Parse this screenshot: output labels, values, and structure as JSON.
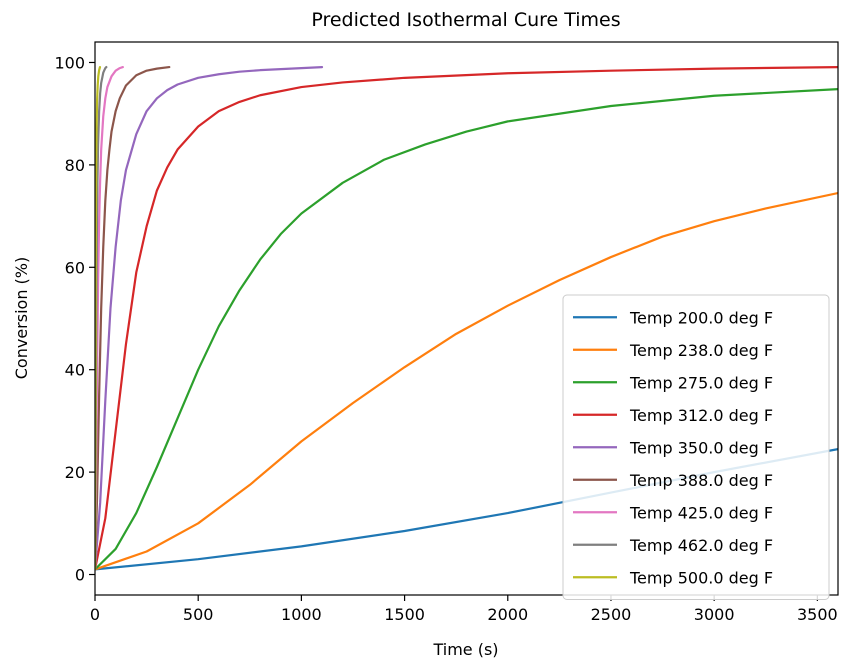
{
  "chart_data": {
    "type": "line",
    "title": "Predicted Isothermal Cure Times",
    "xlabel": "Time (s)",
    "ylabel": "Conversion (%)",
    "xlim": [
      0,
      3600
    ],
    "ylim": [
      -4,
      104
    ],
    "xticks": [
      0,
      500,
      1000,
      1500,
      2000,
      2500,
      3000,
      3500
    ],
    "yticks": [
      0,
      20,
      40,
      60,
      80,
      100
    ],
    "grid": false,
    "legend_position": "lower-right",
    "series": [
      {
        "name": "Temp 200.0 deg F",
        "color": "#1f77b4",
        "x": [
          0,
          500,
          1000,
          1500,
          2000,
          2500,
          3000,
          3600
        ],
        "y": [
          1,
          3,
          5.5,
          8.5,
          12,
          16,
          20,
          24.5
        ]
      },
      {
        "name": "Temp 238.0 deg F",
        "color": "#ff7f0e",
        "x": [
          0,
          250,
          500,
          750,
          1000,
          1250,
          1500,
          1750,
          2000,
          2250,
          2500,
          2750,
          3000,
          3250,
          3600
        ],
        "y": [
          1,
          4.5,
          10,
          17.5,
          26,
          33.5,
          40.5,
          47,
          52.5,
          57.5,
          62,
          66,
          69,
          71.5,
          74.5
        ]
      },
      {
        "name": "Temp 275.0 deg F",
        "color": "#2ca02c",
        "x": [
          0,
          100,
          200,
          300,
          400,
          500,
          600,
          700,
          800,
          900,
          1000,
          1200,
          1400,
          1600,
          1800,
          2000,
          2500,
          3000,
          3600
        ],
        "y": [
          1,
          5,
          12,
          21,
          30.5,
          40,
          48.5,
          55.5,
          61.5,
          66.5,
          70.5,
          76.5,
          81,
          84,
          86.5,
          88.5,
          91.5,
          93.5,
          94.8
        ]
      },
      {
        "name": "Temp 312.0 deg F",
        "color": "#d62728",
        "x": [
          0,
          50,
          100,
          150,
          200,
          250,
          300,
          350,
          400,
          500,
          600,
          700,
          800,
          1000,
          1200,
          1500,
          2000,
          2500,
          3000,
          3600
        ],
        "y": [
          1,
          11,
          28,
          45,
          59,
          68,
          75,
          79.5,
          83,
          87.5,
          90.5,
          92.3,
          93.6,
          95.2,
          96.1,
          97,
          97.9,
          98.4,
          98.8,
          99.1
        ]
      },
      {
        "name": "Temp 350.0 deg F",
        "color": "#9467bd",
        "x": [
          0,
          25,
          50,
          75,
          100,
          125,
          150,
          200,
          250,
          300,
          350,
          400,
          500,
          600,
          700,
          800,
          1000,
          1100
        ],
        "y": [
          1,
          14,
          34,
          52,
          64,
          73,
          79,
          86,
          90.5,
          93,
          94.6,
          95.7,
          97,
          97.7,
          98.2,
          98.5,
          98.9,
          99.1
        ]
      },
      {
        "name": "Temp 388.0 deg F",
        "color": "#8c564b",
        "x": [
          0,
          10,
          20,
          30,
          40,
          50,
          60,
          70,
          80,
          100,
          120,
          150,
          200,
          250,
          300,
          360
        ],
        "y": [
          1,
          15,
          35,
          52,
          64,
          73,
          79,
          83,
          86.5,
          90.5,
          93,
          95.5,
          97.5,
          98.4,
          98.8,
          99.1
        ]
      },
      {
        "name": "Temp 425.0 deg F",
        "color": "#e377c2",
        "x": [
          0,
          5,
          10,
          15,
          20,
          25,
          30,
          40,
          50,
          60,
          80,
          100,
          120,
          135
        ],
        "y": [
          1,
          18,
          40,
          57,
          69,
          77,
          83,
          89.5,
          93,
          95.2,
          97.3,
          98.4,
          98.9,
          99.1
        ]
      },
      {
        "name": "Temp 462.0 deg F",
        "color": "#7f7f7f",
        "x": [
          0,
          3,
          6,
          9,
          12,
          15,
          20,
          25,
          30,
          40,
          50,
          55
        ],
        "y": [
          1,
          22,
          48,
          66,
          77,
          84,
          90.5,
          94,
          96,
          98,
          98.9,
          99.1
        ]
      },
      {
        "name": "Temp 500.0 deg F",
        "color": "#bcbd22",
        "x": [
          0,
          1.5,
          3,
          4.5,
          6,
          8,
          10,
          13,
          16,
          20,
          24
        ],
        "y": [
          1,
          25,
          52,
          70,
          80,
          88,
          92.5,
          95.5,
          97.3,
          98.5,
          99.1
        ]
      }
    ]
  }
}
